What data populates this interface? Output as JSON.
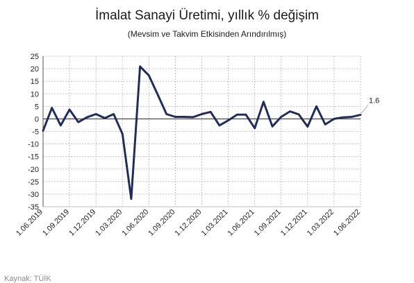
{
  "chart_data": {
    "type": "line",
    "title": "İmalat Sanayi Üretimi, yıllık % değişim",
    "subtitle": "(Mevsim ve Takvim Etkisinden Arındırılmış)",
    "xlabel": "",
    "ylabel": "",
    "ylim": [
      -35,
      25
    ],
    "yticks": [
      25,
      20,
      15,
      10,
      5,
      0,
      -5,
      -10,
      -15,
      -20,
      -25,
      -30,
      -35
    ],
    "xtick_labels": [
      "1.06.2019",
      "1.09.2019",
      "1.12.2019",
      "1.03.2020",
      "1.06.2020",
      "1.09.2020",
      "1.12.2020",
      "1.03.2021",
      "1.06.2021",
      "1.09.2021",
      "1.12.2021",
      "1.03.2022",
      "1.06.2022"
    ],
    "grid": true,
    "series": [
      {
        "color": "#1f2d5c",
        "x": [
          "2019-06",
          "2019-07",
          "2019-08",
          "2019-09",
          "2019-10",
          "2019-11",
          "2019-12",
          "2020-01",
          "2020-02",
          "2020-03",
          "2020-04",
          "2020-05",
          "2020-06",
          "2020-07",
          "2020-08",
          "2020-09",
          "2020-10",
          "2020-11",
          "2020-12",
          "2021-01",
          "2021-02",
          "2021-03",
          "2021-04",
          "2021-05",
          "2021-06",
          "2021-07",
          "2021-08",
          "2021-09",
          "2021-10",
          "2021-11",
          "2021-12",
          "2022-01",
          "2022-02",
          "2022-03",
          "2022-04",
          "2022-05",
          "2022-06"
        ],
        "values": [
          -4.7,
          4.4,
          -2.6,
          3.7,
          -1.3,
          0.7,
          1.9,
          0.3,
          1.9,
          -6.0,
          -31.9,
          20.9,
          17.3,
          9.7,
          1.9,
          0.8,
          0.8,
          0.7,
          1.9,
          2.8,
          -2.6,
          -0.6,
          1.7,
          1.7,
          -3.7,
          6.8,
          -3.0,
          0.8,
          3.0,
          1.8,
          -3.1,
          5.0,
          -2.2,
          0.0,
          0.6,
          0.8,
          1.6
        ]
      }
    ],
    "annotations": [
      {
        "text": "1.6"
      }
    ]
  },
  "source": "Kaynak: TÜİK"
}
